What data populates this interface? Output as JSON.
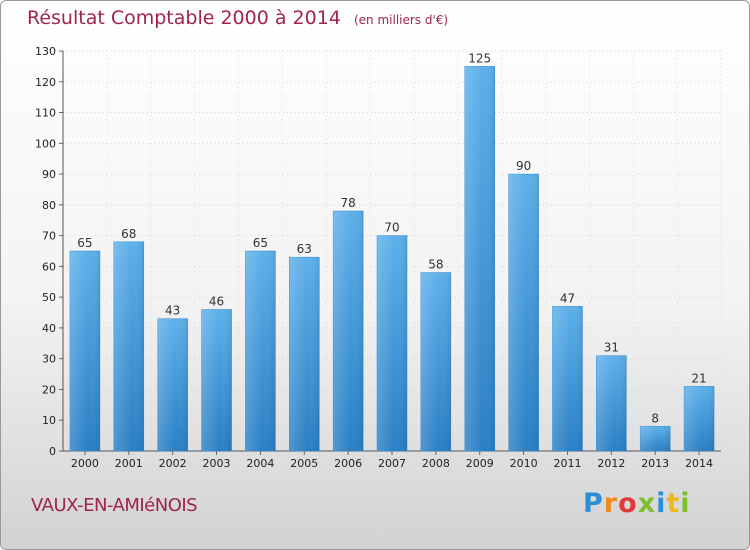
{
  "title": "Résultat Comptable 2000 à 2014",
  "subtitle": "(en milliers d'€)",
  "commune": "VAUX-EN-AMIéNOIS",
  "logo": {
    "letters": [
      "P",
      "r",
      "o",
      "x",
      "i",
      "t",
      "i"
    ],
    "colors": [
      "#2b8fd6",
      "#f08a1c",
      "#e23b3b",
      "#7cbf2a",
      "#2b8fd6",
      "#f0b81c",
      "#7cbf2a"
    ]
  },
  "chart_data": {
    "type": "bar",
    "categories": [
      "2000",
      "2001",
      "2002",
      "2003",
      "2004",
      "2005",
      "2006",
      "2007",
      "2008",
      "2009",
      "2010",
      "2011",
      "2012",
      "2013",
      "2014"
    ],
    "values": [
      65,
      68,
      43,
      46,
      65,
      63,
      78,
      70,
      58,
      125,
      90,
      47,
      31,
      8,
      21
    ],
    "value_labels": [
      "65",
      "68",
      "43",
      "46",
      "65",
      "63",
      "78",
      "70",
      "58",
      "125",
      "90",
      "47",
      "31",
      "8",
      "21"
    ],
    "ylim": [
      0,
      130
    ],
    "yticks": [
      "0",
      "10",
      "20",
      "30",
      "40",
      "50",
      "60",
      "70",
      "80",
      "90",
      "100",
      "110",
      "120",
      "130"
    ],
    "grid": true,
    "bar_color": "#4ea6e4",
    "bar_color_dark": "#2a7fc4"
  }
}
